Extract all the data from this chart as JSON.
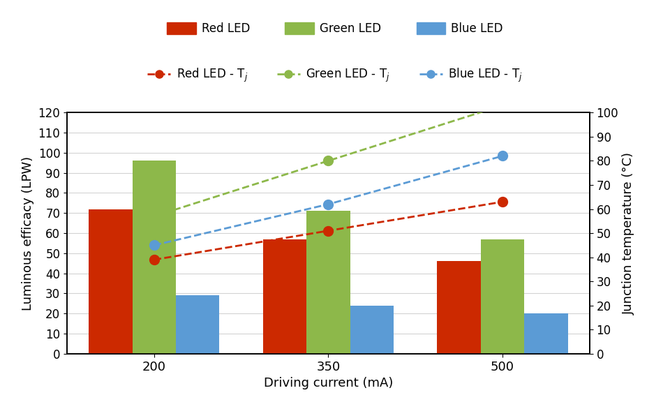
{
  "currents": [
    200,
    350,
    500
  ],
  "bar_red": [
    72,
    57,
    46
  ],
  "bar_green": [
    96,
    71,
    57
  ],
  "bar_blue": [
    29,
    24,
    20
  ],
  "tj_red": [
    39,
    51,
    63
  ],
  "tj_green": [
    57,
    80,
    103
  ],
  "tj_blue": [
    45,
    62,
    82
  ],
  "color_red": "#cc2900",
  "color_green": "#8db84a",
  "color_blue": "#5b9bd5",
  "ylim_left": [
    0,
    120
  ],
  "ylim_right": [
    0,
    100
  ],
  "yticks_left": [
    0,
    10,
    20,
    30,
    40,
    50,
    60,
    70,
    80,
    90,
    100,
    110,
    120
  ],
  "yticks_right": [
    0,
    10,
    20,
    30,
    40,
    50,
    60,
    70,
    80,
    90,
    100
  ],
  "xlabel": "Driving current (mA)",
  "ylabel_left": "Luminous efficacy (LPW)",
  "ylabel_right": "Junction temperature (°C)",
  "bar_width": 0.25
}
